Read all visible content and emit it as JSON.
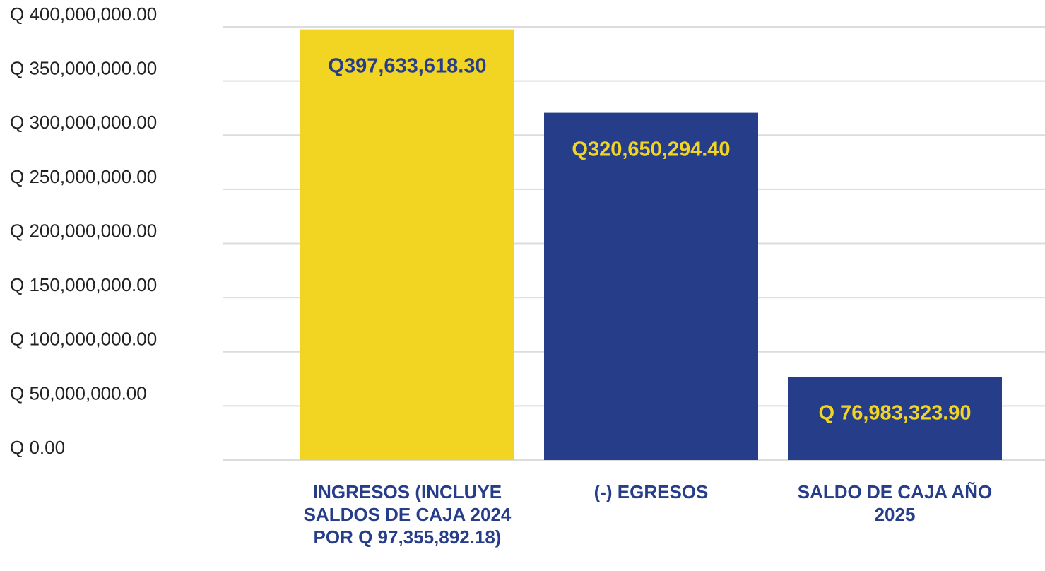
{
  "chart_data": {
    "type": "bar",
    "categories": [
      "INGRESOS (INCLUYE SALDOS DE CAJA 2024 POR Q 97,355,892.18)",
      "(-) EGRESOS",
      "SALDO DE CAJA AÑO 2025"
    ],
    "values": [
      397633618.3,
      320650294.4,
      76983323.9
    ],
    "value_labels": [
      "Q397,633,618.30",
      "Q320,650,294.40",
      "Q 76,983,323.90"
    ],
    "colors": [
      "#f2d423",
      "#263d8a",
      "#263d8a"
    ],
    "label_colors": [
      "#263d8a",
      "#f2d423",
      "#f2d423"
    ],
    "category_color": "#263d8a",
    "ylim": [
      0,
      400000000
    ],
    "yticks": [
      {
        "value": 0,
        "label": "Q 0.00"
      },
      {
        "value": 50000000,
        "label": "Q 50,000,000.00"
      },
      {
        "value": 100000000,
        "label": "Q 100,000,000.00"
      },
      {
        "value": 150000000,
        "label": "Q 150,000,000.00"
      },
      {
        "value": 200000000,
        "label": "Q 200,000,000.00"
      },
      {
        "value": 250000000,
        "label": "Q 250,000,000.00"
      },
      {
        "value": 300000000,
        "label": "Q 300,000,000.00"
      },
      {
        "value": 350000000,
        "label": "Q 350,000,000.00"
      },
      {
        "value": 400000000,
        "label": "Q 400,000,000.00"
      }
    ],
    "grid": true
  }
}
